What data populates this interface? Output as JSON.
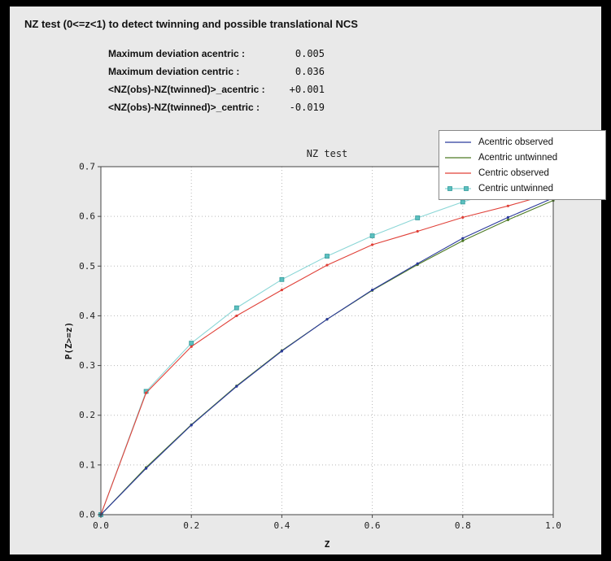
{
  "header": {
    "title": "NZ test (0<=z<1) to detect twinning and possible translational NCS"
  },
  "stats": {
    "rows": [
      {
        "label": "Maximum deviation acentric :",
        "value": "0.005"
      },
      {
        "label": "Maximum deviation centric :",
        "value": "0.036"
      },
      {
        "label": "<NZ(obs)-NZ(twinned)>_acentric :",
        "value": "+0.001"
      },
      {
        "label": "<NZ(obs)-NZ(twinned)>_centric :",
        "value": "-0.019"
      }
    ]
  },
  "colors": {
    "frame": "#000000",
    "panel_bg": "#e9e9e9",
    "plot_bg": "#ffffff",
    "grid": "#b8b8b8",
    "axis": "#444444"
  },
  "chart_data": {
    "type": "line",
    "title": "NZ test",
    "xlabel": "Z",
    "ylabel": "P(Z>=z)",
    "xlim": [
      0.0,
      1.0
    ],
    "ylim": [
      0.0,
      0.7
    ],
    "x_ticks": [
      0.0,
      0.2,
      0.4,
      0.6,
      0.8,
      1.0
    ],
    "y_ticks": [
      0.0,
      0.1,
      0.2,
      0.3,
      0.4,
      0.5,
      0.6,
      0.7
    ],
    "grid": "dotted",
    "legend_position": "top-right",
    "x": [
      0.0,
      0.1,
      0.2,
      0.3,
      0.4,
      0.5,
      0.6,
      0.7,
      0.8,
      0.9,
      1.0
    ],
    "series": [
      {
        "name": "Acentric observed",
        "color": "#2b3a9c",
        "marker": "dot",
        "values": [
          0.0,
          0.093,
          0.18,
          0.258,
          0.329,
          0.393,
          0.452,
          0.505,
          0.556,
          0.598,
          0.637
        ]
      },
      {
        "name": "Acentric untwinned",
        "color": "#4d7a25",
        "marker": "dot",
        "values": [
          0.0,
          0.095,
          0.181,
          0.259,
          0.33,
          0.393,
          0.451,
          0.503,
          0.551,
          0.593,
          0.632
        ]
      },
      {
        "name": "Centric observed",
        "color": "#e04038",
        "marker": "dot",
        "values": [
          0.0,
          0.245,
          0.338,
          0.4,
          0.452,
          0.502,
          0.543,
          0.57,
          0.598,
          0.621,
          0.647
        ]
      },
      {
        "name": "Centric untwinned",
        "color": "#8ad6d6",
        "marker": "square",
        "marker_fill": "#5cc0c0",
        "marker_edge": "#359b9b",
        "values": [
          0.0,
          0.248,
          0.345,
          0.416,
          0.473,
          0.52,
          0.561,
          0.597,
          0.629,
          0.657,
          0.683
        ]
      }
    ]
  }
}
